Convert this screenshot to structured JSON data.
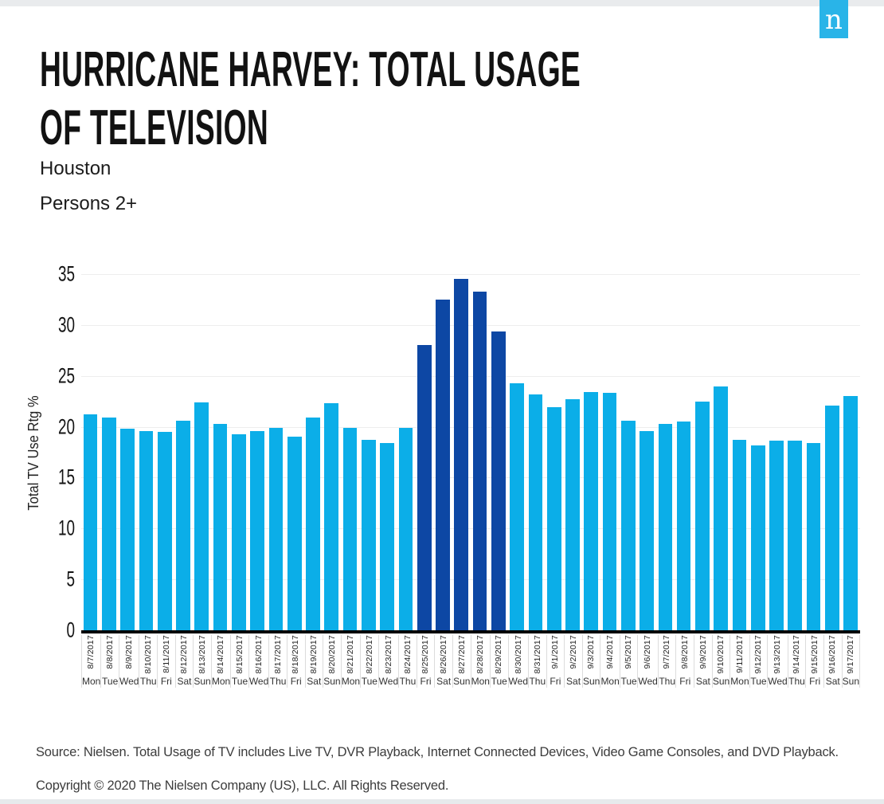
{
  "page": {
    "logo_letter": "n",
    "title_line1": "HURRICANE HARVEY: TOTAL USAGE",
    "title_line2": "OF TELEVISION",
    "subtitle_market": "Houston",
    "subtitle_demo": "Persons 2+",
    "source_note": "Source: Nielsen. Total Usage of TV includes Live TV, DVR Playback, Internet Connected Devices, Video Game Consoles, and DVD Playback.",
    "copyright": "Copyright © 2020 The Nielsen Company (US), LLC. All Rights Reserved."
  },
  "colors": {
    "bar_default": "#0baee8",
    "bar_highlight": "#0d47a4",
    "logo_blue": "#29b4e8",
    "axis_line": "#000000",
    "gridline": "#ededed"
  },
  "chart_data": {
    "type": "bar",
    "title": "Hurricane Harvey: Total Usage of Television",
    "subtitle": "Houston, Persons 2+",
    "ylabel": "Total TV Use Rtg %",
    "ylim": [
      0,
      35
    ],
    "yticks": [
      0,
      5,
      10,
      15,
      20,
      25,
      30,
      35
    ],
    "grid": "horizontal",
    "legend": "none",
    "highlight_range": [
      "8/25/2017",
      "8/29/2017"
    ],
    "points": [
      {
        "date": "8/7/2017",
        "day": "Mon",
        "value": 21.2,
        "highlight": false
      },
      {
        "date": "8/8/2017",
        "day": "Tue",
        "value": 20.9,
        "highlight": false
      },
      {
        "date": "8/9/2017",
        "day": "Wed",
        "value": 19.8,
        "highlight": false
      },
      {
        "date": "8/10/2017",
        "day": "Thu",
        "value": 19.6,
        "highlight": false
      },
      {
        "date": "8/11/2017",
        "day": "Fri",
        "value": 19.5,
        "highlight": false
      },
      {
        "date": "8/12/2017",
        "day": "Sat",
        "value": 20.6,
        "highlight": false
      },
      {
        "date": "8/13/2017",
        "day": "Sun",
        "value": 22.4,
        "highlight": false
      },
      {
        "date": "8/14/2017",
        "day": "Mon",
        "value": 20.3,
        "highlight": false
      },
      {
        "date": "8/15/2017",
        "day": "Tue",
        "value": 19.3,
        "highlight": false
      },
      {
        "date": "8/16/2017",
        "day": "Wed",
        "value": 19.6,
        "highlight": false
      },
      {
        "date": "8/17/2017",
        "day": "Thu",
        "value": 19.9,
        "highlight": false
      },
      {
        "date": "8/18/2017",
        "day": "Fri",
        "value": 19.0,
        "highlight": false
      },
      {
        "date": "8/19/2017",
        "day": "Sat",
        "value": 20.9,
        "highlight": false
      },
      {
        "date": "8/20/2017",
        "day": "Sun",
        "value": 22.3,
        "highlight": false
      },
      {
        "date": "8/21/2017",
        "day": "Mon",
        "value": 19.9,
        "highlight": false
      },
      {
        "date": "8/22/2017",
        "day": "Tue",
        "value": 18.7,
        "highlight": false
      },
      {
        "date": "8/23/2017",
        "day": "Wed",
        "value": 18.4,
        "highlight": false
      },
      {
        "date": "8/24/2017",
        "day": "Thu",
        "value": 19.9,
        "highlight": false
      },
      {
        "date": "8/25/2017",
        "day": "Fri",
        "value": 28.0,
        "highlight": true
      },
      {
        "date": "8/26/2017",
        "day": "Sat",
        "value": 32.5,
        "highlight": true
      },
      {
        "date": "8/27/2017",
        "day": "Sun",
        "value": 34.5,
        "highlight": true
      },
      {
        "date": "8/28/2017",
        "day": "Mon",
        "value": 33.3,
        "highlight": true
      },
      {
        "date": "8/29/2017",
        "day": "Tue",
        "value": 29.4,
        "highlight": true
      },
      {
        "date": "8/30/2017",
        "day": "Wed",
        "value": 24.3,
        "highlight": false
      },
      {
        "date": "8/31/2017",
        "day": "Thu",
        "value": 23.2,
        "highlight": false
      },
      {
        "date": "9/1/2017",
        "day": "Fri",
        "value": 21.9,
        "highlight": false
      },
      {
        "date": "9/2/2017",
        "day": "Sat",
        "value": 22.7,
        "highlight": false
      },
      {
        "date": "9/3/2017",
        "day": "Sun",
        "value": 23.4,
        "highlight": false
      },
      {
        "date": "9/4/2017",
        "day": "Mon",
        "value": 23.3,
        "highlight": false
      },
      {
        "date": "9/5/2017",
        "day": "Tue",
        "value": 20.6,
        "highlight": false
      },
      {
        "date": "9/6/2017",
        "day": "Wed",
        "value": 19.6,
        "highlight": false
      },
      {
        "date": "9/7/2017",
        "day": "Thu",
        "value": 20.3,
        "highlight": false
      },
      {
        "date": "9/8/2017",
        "day": "Fri",
        "value": 20.5,
        "highlight": false
      },
      {
        "date": "9/9/2017",
        "day": "Sat",
        "value": 22.5,
        "highlight": false
      },
      {
        "date": "9/10/2017",
        "day": "Sun",
        "value": 24.0,
        "highlight": false
      },
      {
        "date": "9/11/2017",
        "day": "Mon",
        "value": 18.7,
        "highlight": false
      },
      {
        "date": "9/12/2017",
        "day": "Tue",
        "value": 18.2,
        "highlight": false
      },
      {
        "date": "9/13/2017",
        "day": "Wed",
        "value": 18.6,
        "highlight": false
      },
      {
        "date": "9/14/2017",
        "day": "Thu",
        "value": 18.6,
        "highlight": false
      },
      {
        "date": "9/15/2017",
        "day": "Fri",
        "value": 18.4,
        "highlight": false
      },
      {
        "date": "9/16/2017",
        "day": "Sat",
        "value": 22.1,
        "highlight": false
      },
      {
        "date": "9/17/2017",
        "day": "Sun",
        "value": 23.0,
        "highlight": false
      }
    ]
  }
}
